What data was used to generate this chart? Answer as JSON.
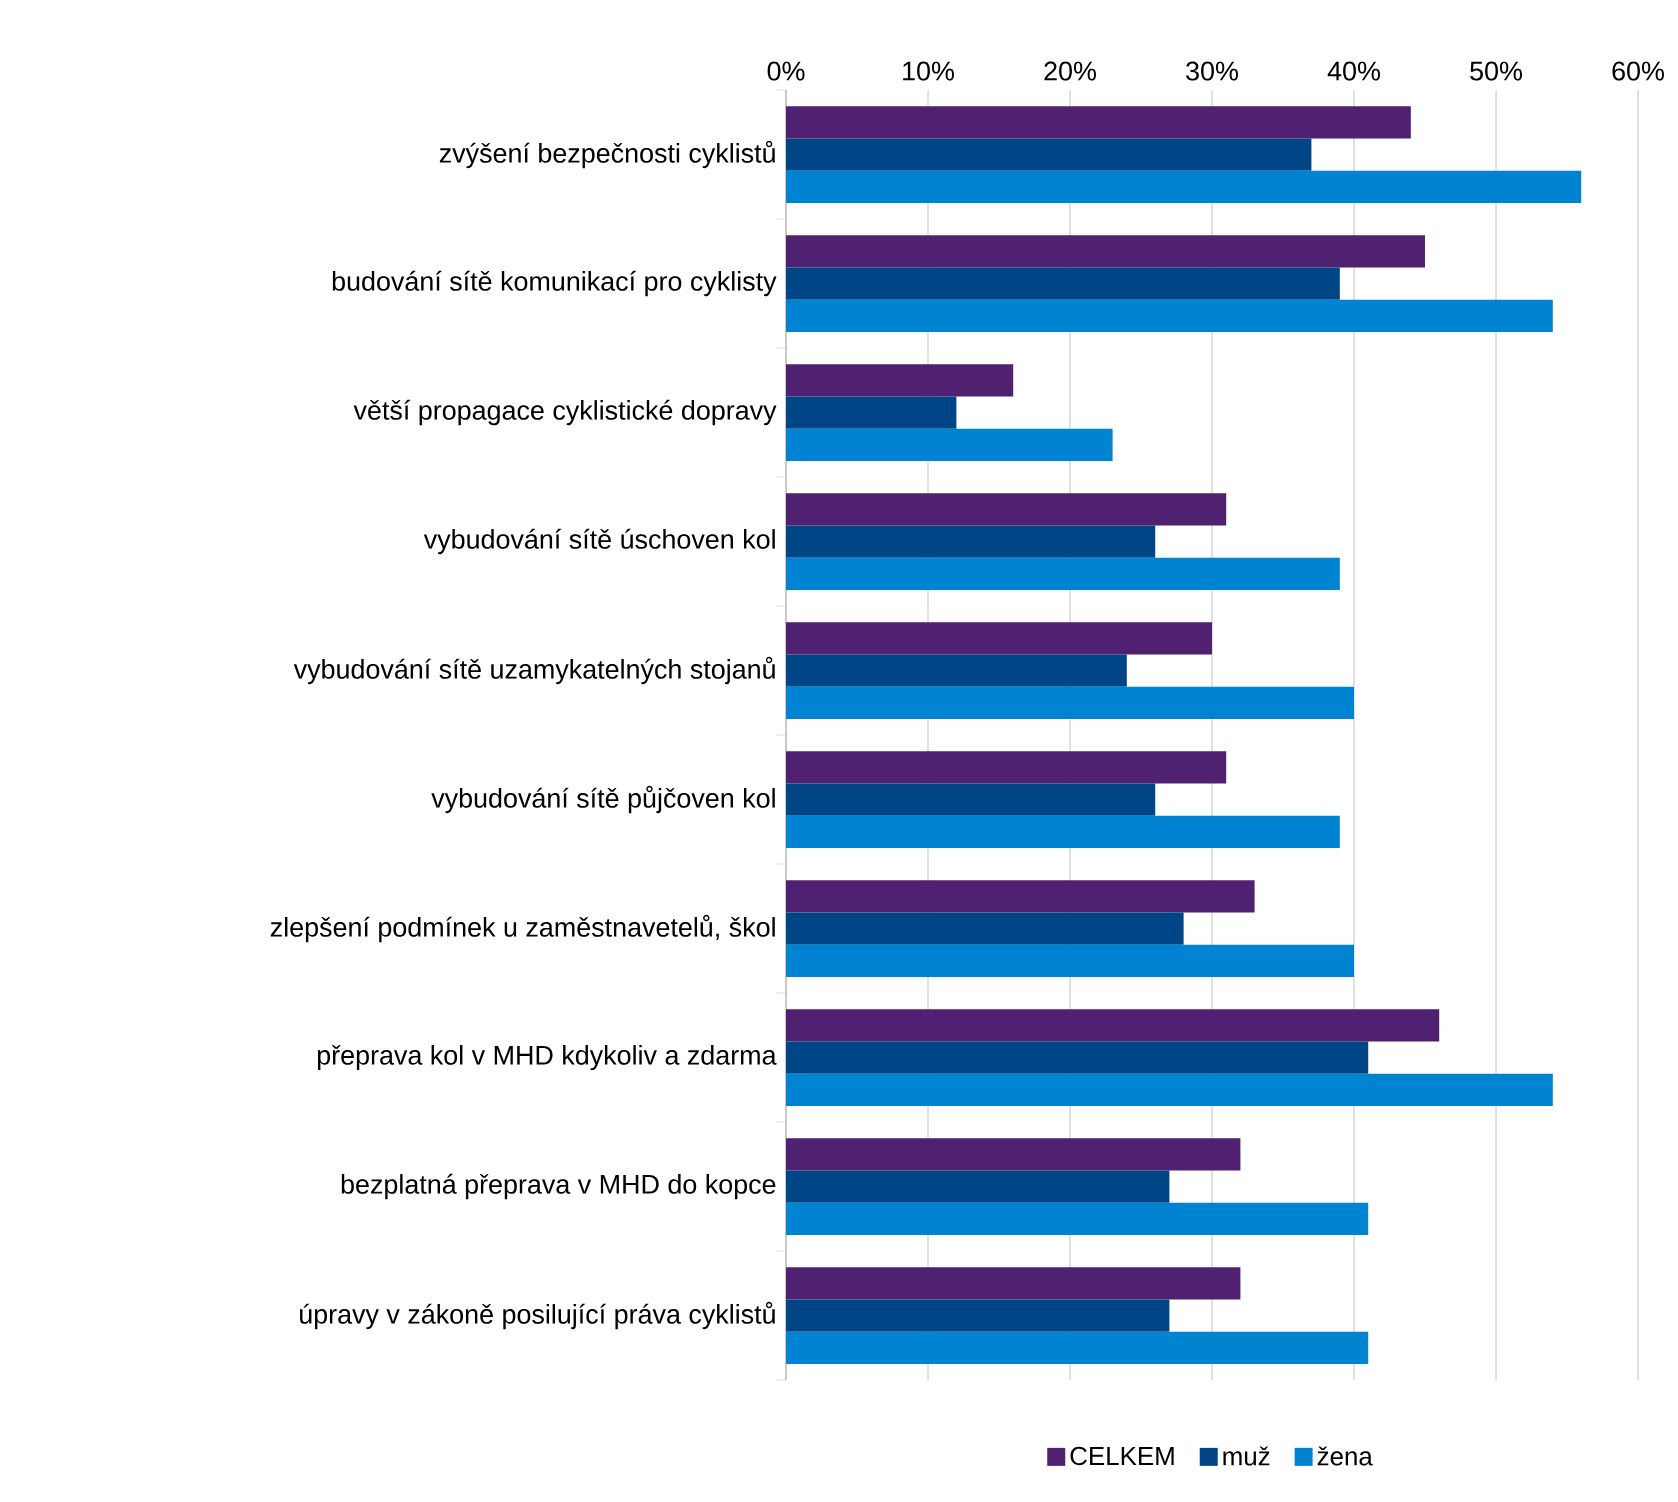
{
  "chart_data": {
    "type": "bar",
    "orientation": "horizontal",
    "categories": [
      "zvýšení bezpečnosti cyklistů",
      "budování sítě komunikací pro cyklisty",
      "větší propagace cyklistické dopravy",
      "vybudování sítě úschoven kol",
      "vybudování sítě uzamykatelných stojanů",
      "vybudování sítě půjčoven kol",
      "zlepšení podmínek u zaměstnavetelů, škol",
      "přeprava kol v MHD kdykoliv a zdarma",
      "bezplatná přeprava v MHD do kopce",
      "úpravy v zákoně posilující práva cyklistů"
    ],
    "series": [
      {
        "name": "CELKEM",
        "color": "#4f2170",
        "values": [
          44,
          45,
          16,
          31,
          30,
          31,
          33,
          46,
          32,
          32
        ]
      },
      {
        "name": "muž",
        "color": "#004586",
        "values": [
          37,
          39,
          12,
          26,
          24,
          26,
          28,
          41,
          27,
          27
        ]
      },
      {
        "name": "žena",
        "color": "#0084d1",
        "values": [
          56,
          54,
          23,
          39,
          40,
          39,
          40,
          54,
          41,
          41
        ]
      }
    ],
    "xlim": [
      0,
      60
    ],
    "xticks": [
      {
        "value": 0,
        "label": "0%"
      },
      {
        "value": 10,
        "label": "10%"
      },
      {
        "value": 20,
        "label": "20%"
      },
      {
        "value": 30,
        "label": "30%"
      },
      {
        "value": 40,
        "label": "40%"
      },
      {
        "value": 50,
        "label": "50%"
      },
      {
        "value": 60,
        "label": "60%"
      }
    ],
    "grid": "x",
    "legend": "bottom"
  }
}
